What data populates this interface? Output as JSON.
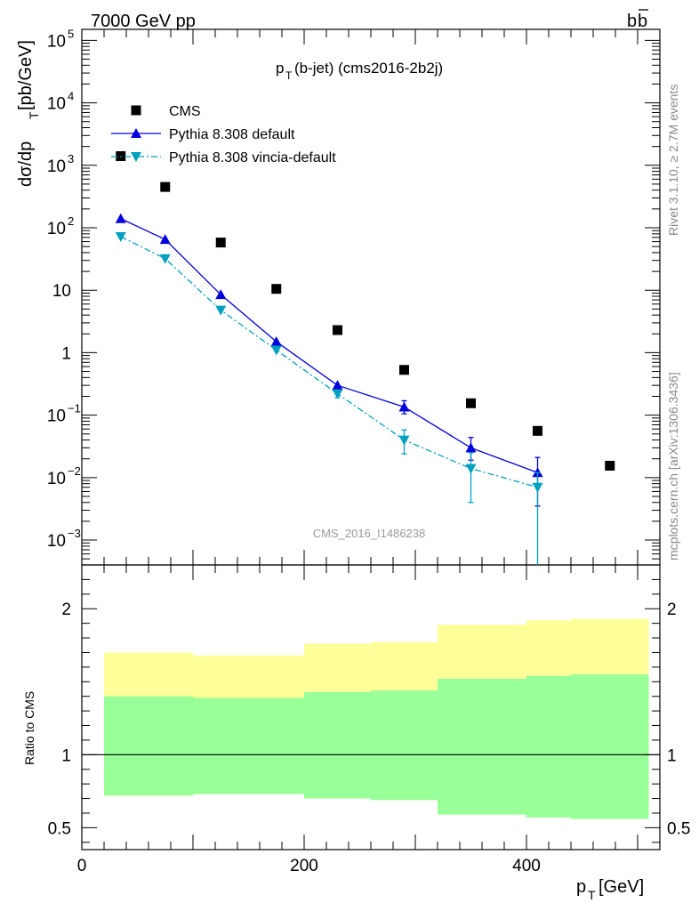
{
  "header": {
    "left": "7000 GeV pp",
    "right_base": "b",
    "right_bar": "b"
  },
  "side_labels": {
    "rivet": "Rivet 3.1.10, ≥ 2.7M events",
    "mcplots": "mcplots.cern.ch [arXiv:1306.3436]"
  },
  "chart_data": [
    {
      "type": "scatter",
      "panel": "main",
      "title_main": "p",
      "title_sub": "T",
      "title_rest": "(b-jet) (cms2016-2b2j)",
      "ylabel_main": "dσ/dp",
      "ylabel_sub": "T",
      "ylabel_rest": " [pb/GeV]",
      "watermark": "CMS_2016_I1486238",
      "yscale": "log",
      "ylim": [
        0.0004,
        150000
      ],
      "xlim": [
        0,
        520
      ],
      "ytick_labels": [
        {
          "v": 0.001,
          "base": "10",
          "exp": "−3"
        },
        {
          "v": 0.01,
          "base": "10",
          "exp": "−2"
        },
        {
          "v": 0.1,
          "base": "10",
          "exp": "−1"
        },
        {
          "v": 1,
          "base": "1",
          "exp": ""
        },
        {
          "v": 10,
          "base": "10",
          "exp": ""
        },
        {
          "v": 100,
          "base": "10",
          "exp": "2"
        },
        {
          "v": 1000,
          "base": "10",
          "exp": "3"
        },
        {
          "v": 10000,
          "base": "10",
          "exp": "4"
        },
        {
          "v": 100000,
          "base": "10",
          "exp": "5"
        }
      ],
      "legend": [
        "CMS",
        "Pythia 8.308 default",
        "Pythia 8.308 vincia-default"
      ],
      "legend_position": "top-left",
      "series": [
        {
          "name": "CMS",
          "color": "#000000",
          "marker": "square",
          "points": [
            {
              "x": 35,
              "y": 1400
            },
            {
              "x": 75,
              "y": 450
            },
            {
              "x": 125,
              "y": 58
            },
            {
              "x": 175,
              "y": 10.5
            },
            {
              "x": 230,
              "y": 2.3
            },
            {
              "x": 290,
              "y": 0.53
            },
            {
              "x": 350,
              "y": 0.155
            },
            {
              "x": 410,
              "y": 0.056
            },
            {
              "x": 475,
              "y": 0.0155
            }
          ]
        },
        {
          "name": "Pythia 8.308 default",
          "color": "#0000dd",
          "marker": "triangle-up",
          "line": "solid",
          "points": [
            {
              "x": 35,
              "y": 140,
              "lo": 140,
              "hi": 140
            },
            {
              "x": 75,
              "y": 65,
              "lo": 65,
              "hi": 65
            },
            {
              "x": 125,
              "y": 8.5,
              "lo": 8.5,
              "hi": 8.5
            },
            {
              "x": 175,
              "y": 1.5,
              "lo": 1.5,
              "hi": 1.5
            },
            {
              "x": 230,
              "y": 0.3,
              "lo": 0.3,
              "hi": 0.3
            },
            {
              "x": 290,
              "y": 0.135,
              "lo": 0.105,
              "hi": 0.17
            },
            {
              "x": 350,
              "y": 0.03,
              "lo": 0.019,
              "hi": 0.044
            },
            {
              "x": 410,
              "y": 0.012,
              "lo": 0.0035,
              "hi": 0.021
            }
          ]
        },
        {
          "name": "Pythia 8.308 vincia-default",
          "color": "#00a0bf",
          "marker": "triangle-down",
          "line": "dashdot",
          "points": [
            {
              "x": 35,
              "y": 72,
              "lo": 72,
              "hi": 72
            },
            {
              "x": 75,
              "y": 32,
              "lo": 32,
              "hi": 32
            },
            {
              "x": 125,
              "y": 4.8,
              "lo": 4.8,
              "hi": 4.8
            },
            {
              "x": 175,
              "y": 1.1,
              "lo": 1.1,
              "hi": 1.1
            },
            {
              "x": 230,
              "y": 0.22,
              "lo": 0.19,
              "hi": 0.25
            },
            {
              "x": 290,
              "y": 0.04,
              "lo": 0.024,
              "hi": 0.058
            },
            {
              "x": 350,
              "y": 0.014,
              "lo": 0.004,
              "hi": 0.025
            },
            {
              "x": 410,
              "y": 0.007,
              "lo": 0.0004,
              "hi": 0.012
            }
          ]
        }
      ]
    },
    {
      "type": "area",
      "panel": "ratio",
      "ylabel": "Ratio to CMS",
      "xlabel_main": "p",
      "xlabel_sub": "T",
      "xlabel_rest": " [GeV]",
      "ylim": [
        0.35,
        2.3
      ],
      "xlim": [
        0,
        520
      ],
      "yticks": [
        0.5,
        1,
        2
      ],
      "ytick_labels": [
        "0.5",
        "1",
        "2"
      ],
      "xticks": [
        0,
        200,
        400
      ],
      "xtick_labels": [
        "0",
        "200",
        "400"
      ],
      "reference_line": 1,
      "bands": [
        {
          "x0": 20,
          "x1": 100,
          "outer": [
            0.72,
            1.7
          ],
          "inner": [
            0.72,
            1.4
          ]
        },
        {
          "x0": 100,
          "x1": 200,
          "outer": [
            0.73,
            1.68
          ],
          "inner": [
            0.73,
            1.39
          ]
        },
        {
          "x0": 200,
          "x1": 260,
          "outer": [
            0.7,
            1.76
          ],
          "inner": [
            0.7,
            1.43
          ]
        },
        {
          "x0": 260,
          "x1": 320,
          "outer": [
            0.69,
            1.77
          ],
          "inner": [
            0.69,
            1.44
          ]
        },
        {
          "x0": 320,
          "x1": 400,
          "outer": [
            0.59,
            1.89
          ],
          "inner": [
            0.59,
            1.52
          ]
        },
        {
          "x0": 400,
          "x1": 440,
          "outer": [
            0.57,
            1.92
          ],
          "inner": [
            0.57,
            1.54
          ]
        },
        {
          "x0": 440,
          "x1": 510,
          "outer": [
            0.56,
            1.93
          ],
          "inner": [
            0.56,
            1.55
          ]
        }
      ],
      "colors": {
        "outer": "#ffff99",
        "inner": "#99ff99"
      }
    }
  ]
}
